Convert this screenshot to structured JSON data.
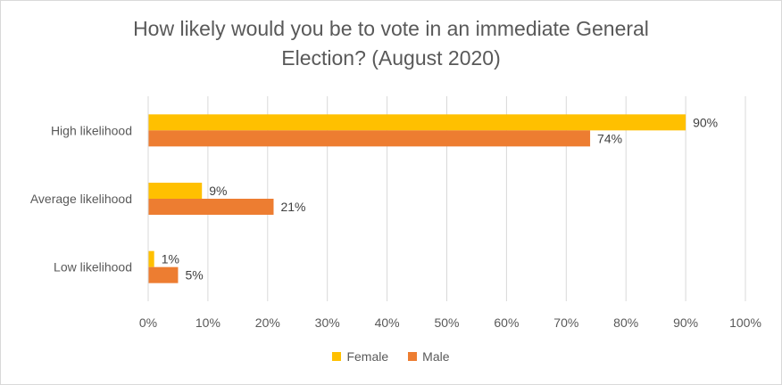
{
  "chart_data": {
    "type": "bar",
    "orientation": "horizontal",
    "title_line1": "How likely would you be to vote in an immediate General",
    "title_line2": "Election? (August 2020)",
    "categories": [
      "High likelihood",
      "Average likelihood",
      "Low likelihood"
    ],
    "series": [
      {
        "name": "Female",
        "color": "#FFC000",
        "values": [
          90,
          9,
          1
        ],
        "labels": [
          "90%",
          "9%",
          "1%"
        ]
      },
      {
        "name": "Male",
        "color": "#ED7D31",
        "values": [
          74,
          21,
          5
        ],
        "labels": [
          "74%",
          "21%",
          "5%"
        ]
      }
    ],
    "xlim": [
      0,
      100
    ],
    "xticks": [
      "0%",
      "10%",
      "20%",
      "30%",
      "40%",
      "50%",
      "60%",
      "70%",
      "80%",
      "90%",
      "100%"
    ],
    "grid": true,
    "legend_position": "bottom"
  }
}
